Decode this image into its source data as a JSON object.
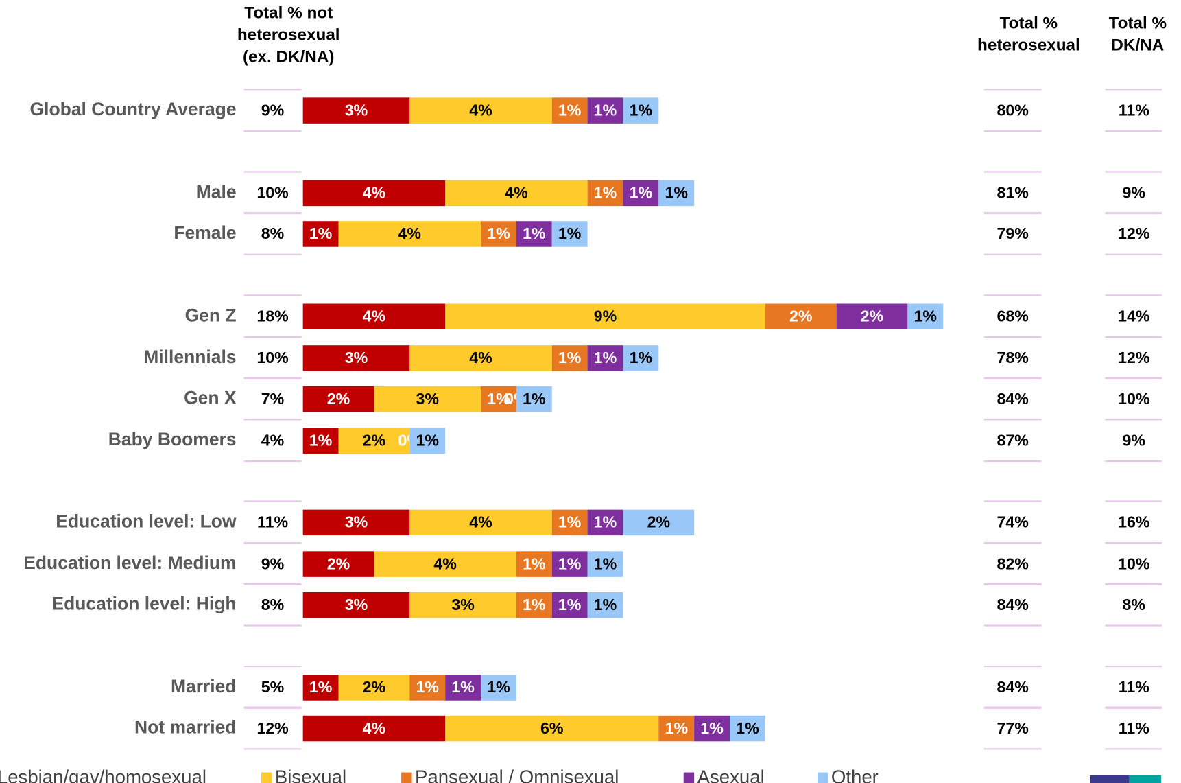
{
  "chart_data": {
    "type": "stacked-bar",
    "headers": {
      "not_heterosexual": [
        "Total % not",
        "heterosexual",
        "(ex. DK/NA)"
      ],
      "heterosexual": [
        "Total %",
        "heterosexual"
      ],
      "dk_na": [
        "Total %",
        "DK/NA"
      ]
    },
    "categories": [
      "Global Country Average",
      "Male",
      "Female",
      "Gen Z",
      "Millennials",
      "Gen X",
      "Baby Boomers",
      "Education level: Low",
      "Education level: Medium",
      "Education level: High",
      "Married",
      "Not married"
    ],
    "total_not_heterosexual": [
      "9%",
      "10%",
      "8%",
      "18%",
      "10%",
      "7%",
      "4%",
      "11%",
      "9%",
      "8%",
      "5%",
      "12%"
    ],
    "total_heterosexual": [
      "80%",
      "81%",
      "79%",
      "68%",
      "78%",
      "84%",
      "87%",
      "74%",
      "82%",
      "84%",
      "84%",
      "77%"
    ],
    "total_dk_na": [
      "11%",
      "9%",
      "12%",
      "14%",
      "12%",
      "10%",
      "9%",
      "16%",
      "10%",
      "8%",
      "11%",
      "11%"
    ],
    "series": [
      {
        "name": "Lesbian/gay/homosexual",
        "color": "#c00000",
        "label_color": "#ffffff",
        "values": [
          3,
          4,
          1,
          4,
          3,
          2,
          1,
          3,
          2,
          3,
          1,
          4
        ],
        "value_labels": [
          "3%",
          "4%",
          "1%",
          "4%",
          "3%",
          "2%",
          "1%",
          "3%",
          "2%",
          "3%",
          "1%",
          "4%"
        ]
      },
      {
        "name": "Bisexual",
        "color": "#ffca2c",
        "label_color": "#000000",
        "values": [
          4,
          4,
          4,
          9,
          4,
          3,
          2,
          4,
          4,
          3,
          2,
          6
        ],
        "value_labels": [
          "4%",
          "4%",
          "4%",
          "9%",
          "4%",
          "3%",
          "2%",
          "4%",
          "4%",
          "3%",
          "2%",
          "6%"
        ]
      },
      {
        "name": "Pansexual / Omnisexual",
        "color": "#e87722",
        "label_color": "#ffffff",
        "values": [
          1,
          1,
          1,
          2,
          1,
          1,
          0,
          1,
          1,
          1,
          1,
          1
        ],
        "value_labels": [
          "1%",
          "1%",
          "1%",
          "2%",
          "1%",
          "1%",
          "0%",
          "1%",
          "1%",
          "1%",
          "1%",
          "1%"
        ]
      },
      {
        "name": "Asexual",
        "color": "#7f2f9e",
        "label_color": "#ffffff",
        "values": [
          1,
          1,
          1,
          2,
          1,
          0,
          0,
          1,
          1,
          1,
          1,
          1
        ],
        "value_labels": [
          "1%",
          "1%",
          "1%",
          "2%",
          "1%",
          "0%",
          "0%",
          "1%",
          "1%",
          "1%",
          "1%",
          "1%"
        ]
      },
      {
        "name": "Other",
        "color": "#99c7f7",
        "label_color": "#000000",
        "values": [
          1,
          1,
          1,
          1,
          1,
          1,
          1,
          2,
          1,
          1,
          1,
          1
        ],
        "value_labels": [
          "1%",
          "1%",
          "1%",
          "1%",
          "1%",
          "1%",
          "1%",
          "2%",
          "1%",
          "1%",
          "1%",
          "1%"
        ]
      }
    ]
  }
}
